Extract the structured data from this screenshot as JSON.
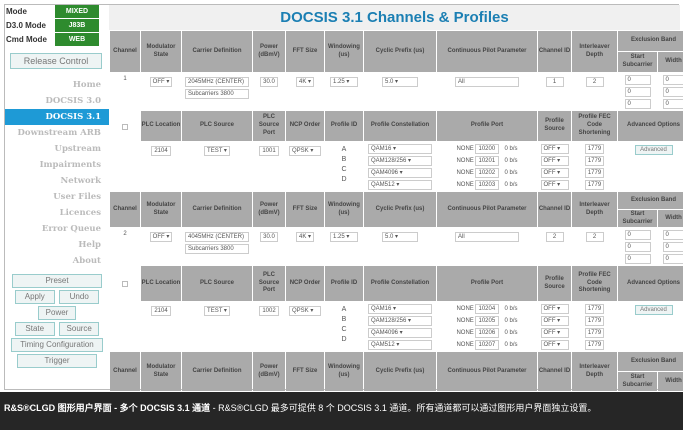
{
  "sidebar": {
    "modes": [
      {
        "label": "Mode",
        "value": "MIXED"
      },
      {
        "label": "D3.0 Mode",
        "value": "J83B"
      },
      {
        "label": "Cmd Mode",
        "value": "WEB"
      }
    ],
    "release_control": "Release Control",
    "nav": [
      "Home",
      "DOCSIS 3.0",
      "DOCSIS 3.1",
      "Downstream ARB",
      "Upstream",
      "Impairments",
      "Network",
      "User Files",
      "Licences",
      "Error Queue",
      "Help",
      "About"
    ],
    "active": "DOCSIS 3.1",
    "buttons": {
      "preset": "Preset",
      "apply": "Apply",
      "undo": "Undo",
      "power": "Power",
      "state": "State",
      "source": "Source",
      "timing": "Timing Configuration",
      "trigger": "Trigger"
    }
  },
  "title": "DOCSIS 3.1 Channels & Profiles",
  "headers": [
    "Channel",
    "Modulator State",
    "Carrier Definition",
    "Power (dBmV)",
    "FFT Size",
    "Windowing (us)",
    "Cyclic Prefix (us)",
    "Continuous Pilot Parameter",
    "Channel ID",
    "Interleaver Depth",
    "Exclusion Band",
    "Start Subcarrier",
    "Width"
  ],
  "sub_headers": [
    "PLC Location",
    "PLC Source",
    "PLC Source Port",
    "NCP Order",
    "Profile ID",
    "Profile Constellation",
    "Profile Port",
    "Profile Source",
    "Profile FEC Code Shortening",
    "Advanced Options"
  ],
  "channels": [
    {
      "channel": "1",
      "state": "OFF",
      "carrier": [
        "2045MHz (CENTER)",
        "Subcarriers 3800"
      ],
      "power": "30.0",
      "fft": "4K",
      "windowing": "1.25",
      "cyclic": "5.0",
      "pilot": "All",
      "channel_id": "1",
      "interleaver": "2",
      "excl_start": [
        "0",
        "0",
        "0"
      ],
      "excl_width": [
        "0",
        "0",
        "0"
      ],
      "plc_location": "2104",
      "plc_source": "TEST",
      "plc_port": "1001",
      "ncp": "QPSK",
      "profile_ids": [
        "A",
        "B",
        "C",
        "D"
      ],
      "constellations": [
        "QAM16",
        "QAM128/256",
        "QAM4096",
        "QAM512"
      ],
      "ports": [
        {
          "mode": "NONE",
          "port": "10200",
          "rate": "0 b/s"
        },
        {
          "mode": "NONE",
          "port": "10201",
          "rate": "0 b/s"
        },
        {
          "mode": "NONE",
          "port": "10202",
          "rate": "0 b/s"
        },
        {
          "mode": "NONE",
          "port": "10203",
          "rate": "0 b/s"
        }
      ],
      "profile_sources": [
        "OFF",
        "OFF",
        "OFF",
        "OFF"
      ],
      "fec": [
        "1779",
        "1779",
        "1779",
        "1779"
      ],
      "advanced": "Advanced"
    },
    {
      "channel": "2",
      "state": "OFF",
      "carrier": [
        "4045MHz (CENTER)",
        "Subcarriers 3800"
      ],
      "power": "30.0",
      "fft": "4K",
      "windowing": "1.25",
      "cyclic": "5.0",
      "pilot": "All",
      "channel_id": "2",
      "interleaver": "2",
      "excl_start": [
        "0",
        "0",
        "0"
      ],
      "excl_width": [
        "0",
        "0",
        "0"
      ],
      "plc_location": "2104",
      "plc_source": "TEST",
      "plc_port": "1002",
      "ncp": "QPSK",
      "profile_ids": [
        "A",
        "B",
        "C",
        "D"
      ],
      "constellations": [
        "QAM16",
        "QAM128/256",
        "QAM4096",
        "QAM512"
      ],
      "ports": [
        {
          "mode": "NONE",
          "port": "10204",
          "rate": "0 b/s"
        },
        {
          "mode": "NONE",
          "port": "10205",
          "rate": "0 b/s"
        },
        {
          "mode": "NONE",
          "port": "10206",
          "rate": "0 b/s"
        },
        {
          "mode": "NONE",
          "port": "10207",
          "rate": "0 b/s"
        }
      ],
      "profile_sources": [
        "OFF",
        "OFF",
        "OFF",
        "OFF"
      ],
      "fec": [
        "1779",
        "1779",
        "1779",
        "1779"
      ],
      "advanced": "Advanced"
    }
  ],
  "caption": {
    "bold": "R&S®CLGD 图形用户界面 - 多个 DOCSIS 3.1 通道",
    "text": " - R&S®CLGD 最多可提供 8 个 DOCSIS 3.1 通道。所有通道都可以通过图形用户界面独立设置。"
  }
}
